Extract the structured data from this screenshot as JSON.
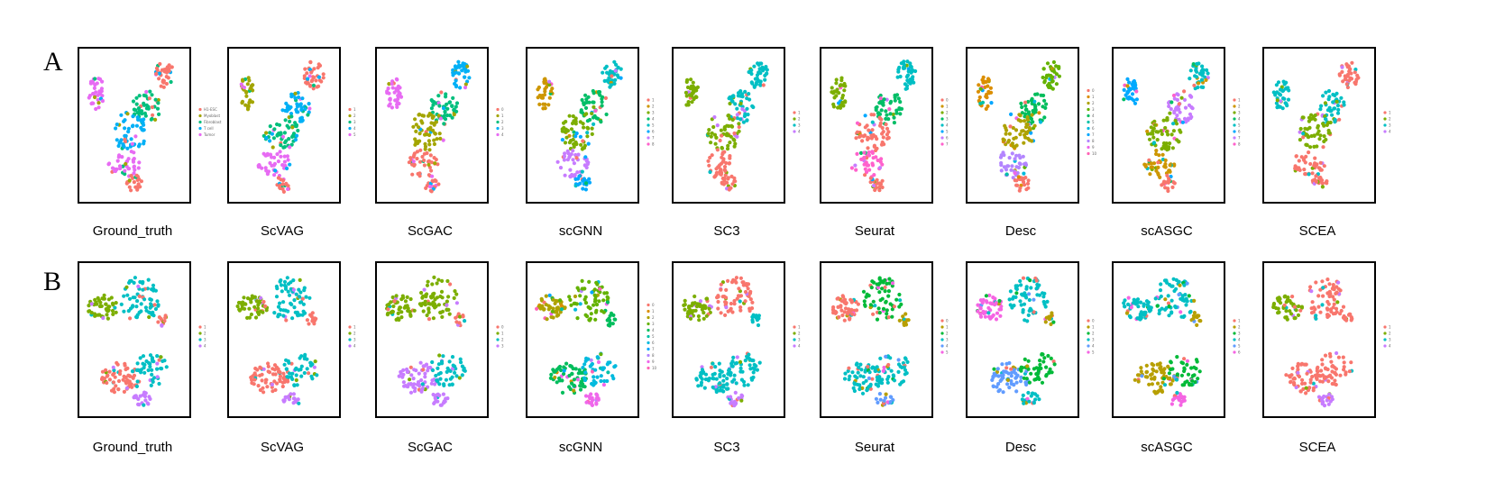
{
  "figure": {
    "row_letters": [
      "A",
      "B"
    ]
  },
  "palettes": {
    "k4": [
      "#F8766D",
      "#7CAE00",
      "#00BFC4",
      "#C77CFF"
    ],
    "k5": [
      "#F8766D",
      "#A3A500",
      "#00BF7D",
      "#00B0F6",
      "#E76BF3"
    ],
    "k6": [
      "#F8766D",
      "#B79F00",
      "#00BA38",
      "#00BFC4",
      "#619CFF",
      "#F564E3"
    ],
    "k8": [
      "#F8766D",
      "#CD9600",
      "#7CAE00",
      "#00BE67",
      "#00BFC4",
      "#00A9FF",
      "#C77CFF",
      "#FF61CC"
    ],
    "k10": [
      "#F8766D",
      "#D89000",
      "#A3A500",
      "#39B600",
      "#00BF7D",
      "#00BFC4",
      "#00B0F6",
      "#9590FF",
      "#E76BF3",
      "#FF62BC"
    ],
    "k11": [
      "#F8766D",
      "#DB8E00",
      "#AEA200",
      "#64B200",
      "#00BD5C",
      "#00C1A7",
      "#00BADE",
      "#00A6FF",
      "#B385FF",
      "#EF67EB",
      "#FF63B6"
    ]
  },
  "chart_data": [
    {
      "row": "A",
      "method": "Ground_truth",
      "type": "scatter",
      "layout": "A",
      "palette": "k5",
      "legend": [
        "H1-ESC",
        "Myoblast",
        "Fibroblast",
        "T cell",
        "Tumor"
      ],
      "mapping": [
        4,
        0,
        2,
        3,
        4,
        0
      ]
    },
    {
      "row": "A",
      "method": "ScVAG",
      "type": "scatter",
      "layout": "A",
      "palette": "k5",
      "legend": [
        "1",
        "2",
        "3",
        "4",
        "5"
      ],
      "mapping": [
        1,
        0,
        3,
        2,
        4,
        0
      ]
    },
    {
      "row": "A",
      "method": "ScGAC",
      "type": "scatter",
      "layout": "A",
      "palette": "k5",
      "legend": [
        "0",
        "1",
        "2",
        "3",
        "4"
      ],
      "mapping": [
        4,
        3,
        2,
        1,
        0,
        0
      ]
    },
    {
      "row": "A",
      "method": "scGNN",
      "type": "scatter",
      "layout": "A",
      "palette": "k8",
      "legend": [
        "1",
        "2",
        "3",
        "4",
        "5",
        "6",
        "7",
        "8"
      ],
      "mapping": [
        1,
        4,
        3,
        2,
        6,
        5
      ]
    },
    {
      "row": "A",
      "method": "SC3",
      "type": "scatter",
      "layout": "A",
      "palette": "k4",
      "legend": [
        "1",
        "2",
        "3",
        "4"
      ],
      "mapping": [
        1,
        2,
        2,
        1,
        0,
        0
      ]
    },
    {
      "row": "A",
      "method": "Seurat",
      "type": "scatter",
      "layout": "A",
      "palette": "k8",
      "legend": [
        "0",
        "1",
        "2",
        "3",
        "4",
        "5",
        "6",
        "7"
      ],
      "mapping": [
        2,
        4,
        3,
        0,
        7,
        0
      ]
    },
    {
      "row": "A",
      "method": "Desc",
      "type": "scatter",
      "layout": "A",
      "palette": "k11",
      "legend": [
        "0",
        "1",
        "2",
        "3",
        "4",
        "5",
        "6",
        "7",
        "8",
        "9",
        "10"
      ],
      "mapping": [
        1,
        3,
        4,
        2,
        8,
        0
      ]
    },
    {
      "row": "A",
      "method": "scASGC",
      "type": "scatter",
      "layout": "A",
      "palette": "k8",
      "legend": [
        "1",
        "2",
        "3",
        "4",
        "5",
        "6",
        "7",
        "8"
      ],
      "mapping": [
        5,
        4,
        6,
        2,
        1,
        0
      ]
    },
    {
      "row": "A",
      "method": "SCEA",
      "type": "scatter",
      "layout": "A",
      "palette": "k4",
      "legend": [
        "1",
        "2",
        "3",
        "4"
      ],
      "mapping": [
        2,
        0,
        2,
        1,
        0,
        0
      ]
    },
    {
      "row": "B",
      "method": "Ground_truth",
      "type": "scatter",
      "layout": "B",
      "palette": "k4",
      "legend": [
        "1",
        "2",
        "3",
        "4"
      ],
      "mapping": [
        1,
        2,
        0,
        0,
        2,
        3
      ]
    },
    {
      "row": "B",
      "method": "ScVAG",
      "type": "scatter",
      "layout": "B",
      "palette": "k4",
      "legend": [
        "1",
        "2",
        "3",
        "4"
      ],
      "mapping": [
        1,
        2,
        0,
        0,
        2,
        3
      ]
    },
    {
      "row": "B",
      "method": "ScGAC",
      "type": "scatter",
      "layout": "B",
      "palette": "k4",
      "legend": [
        "0",
        "1",
        "2",
        "3"
      ],
      "mapping": [
        1,
        1,
        0,
        3,
        2,
        3
      ]
    },
    {
      "row": "B",
      "method": "scGNN",
      "type": "scatter",
      "layout": "B",
      "palette": "k11",
      "legend": [
        "0",
        "1",
        "2",
        "3",
        "4",
        "5",
        "6",
        "7",
        "8",
        "9",
        "10"
      ],
      "mapping": [
        2,
        3,
        4,
        4,
        6,
        9
      ]
    },
    {
      "row": "B",
      "method": "SC3",
      "type": "scatter",
      "layout": "B",
      "palette": "k4",
      "legend": [
        "1",
        "2",
        "3",
        "4"
      ],
      "mapping": [
        1,
        0,
        2,
        2,
        2,
        3
      ]
    },
    {
      "row": "B",
      "method": "Seurat",
      "type": "scatter",
      "layout": "B",
      "palette": "k6",
      "legend": [
        "0",
        "1",
        "2",
        "3",
        "4",
        "5"
      ],
      "mapping": [
        0,
        2,
        1,
        3,
        3,
        4
      ]
    },
    {
      "row": "B",
      "method": "Desc",
      "type": "scatter",
      "layout": "B",
      "palette": "k6",
      "legend": [
        "0",
        "1",
        "2",
        "3",
        "4",
        "5"
      ],
      "mapping": [
        5,
        3,
        1,
        4,
        2,
        3
      ]
    },
    {
      "row": "B",
      "method": "scASGC",
      "type": "scatter",
      "layout": "B",
      "palette": "k6",
      "legend": [
        "1",
        "2",
        "3",
        "4",
        "5",
        "6"
      ],
      "mapping": [
        3,
        3,
        1,
        1,
        2,
        5
      ]
    },
    {
      "row": "B",
      "method": "SCEA",
      "type": "scatter",
      "layout": "B",
      "palette": "k4",
      "legend": [
        "1",
        "2",
        "3",
        "4"
      ],
      "mapping": [
        1,
        0,
        0,
        0,
        0,
        3
      ]
    }
  ]
}
